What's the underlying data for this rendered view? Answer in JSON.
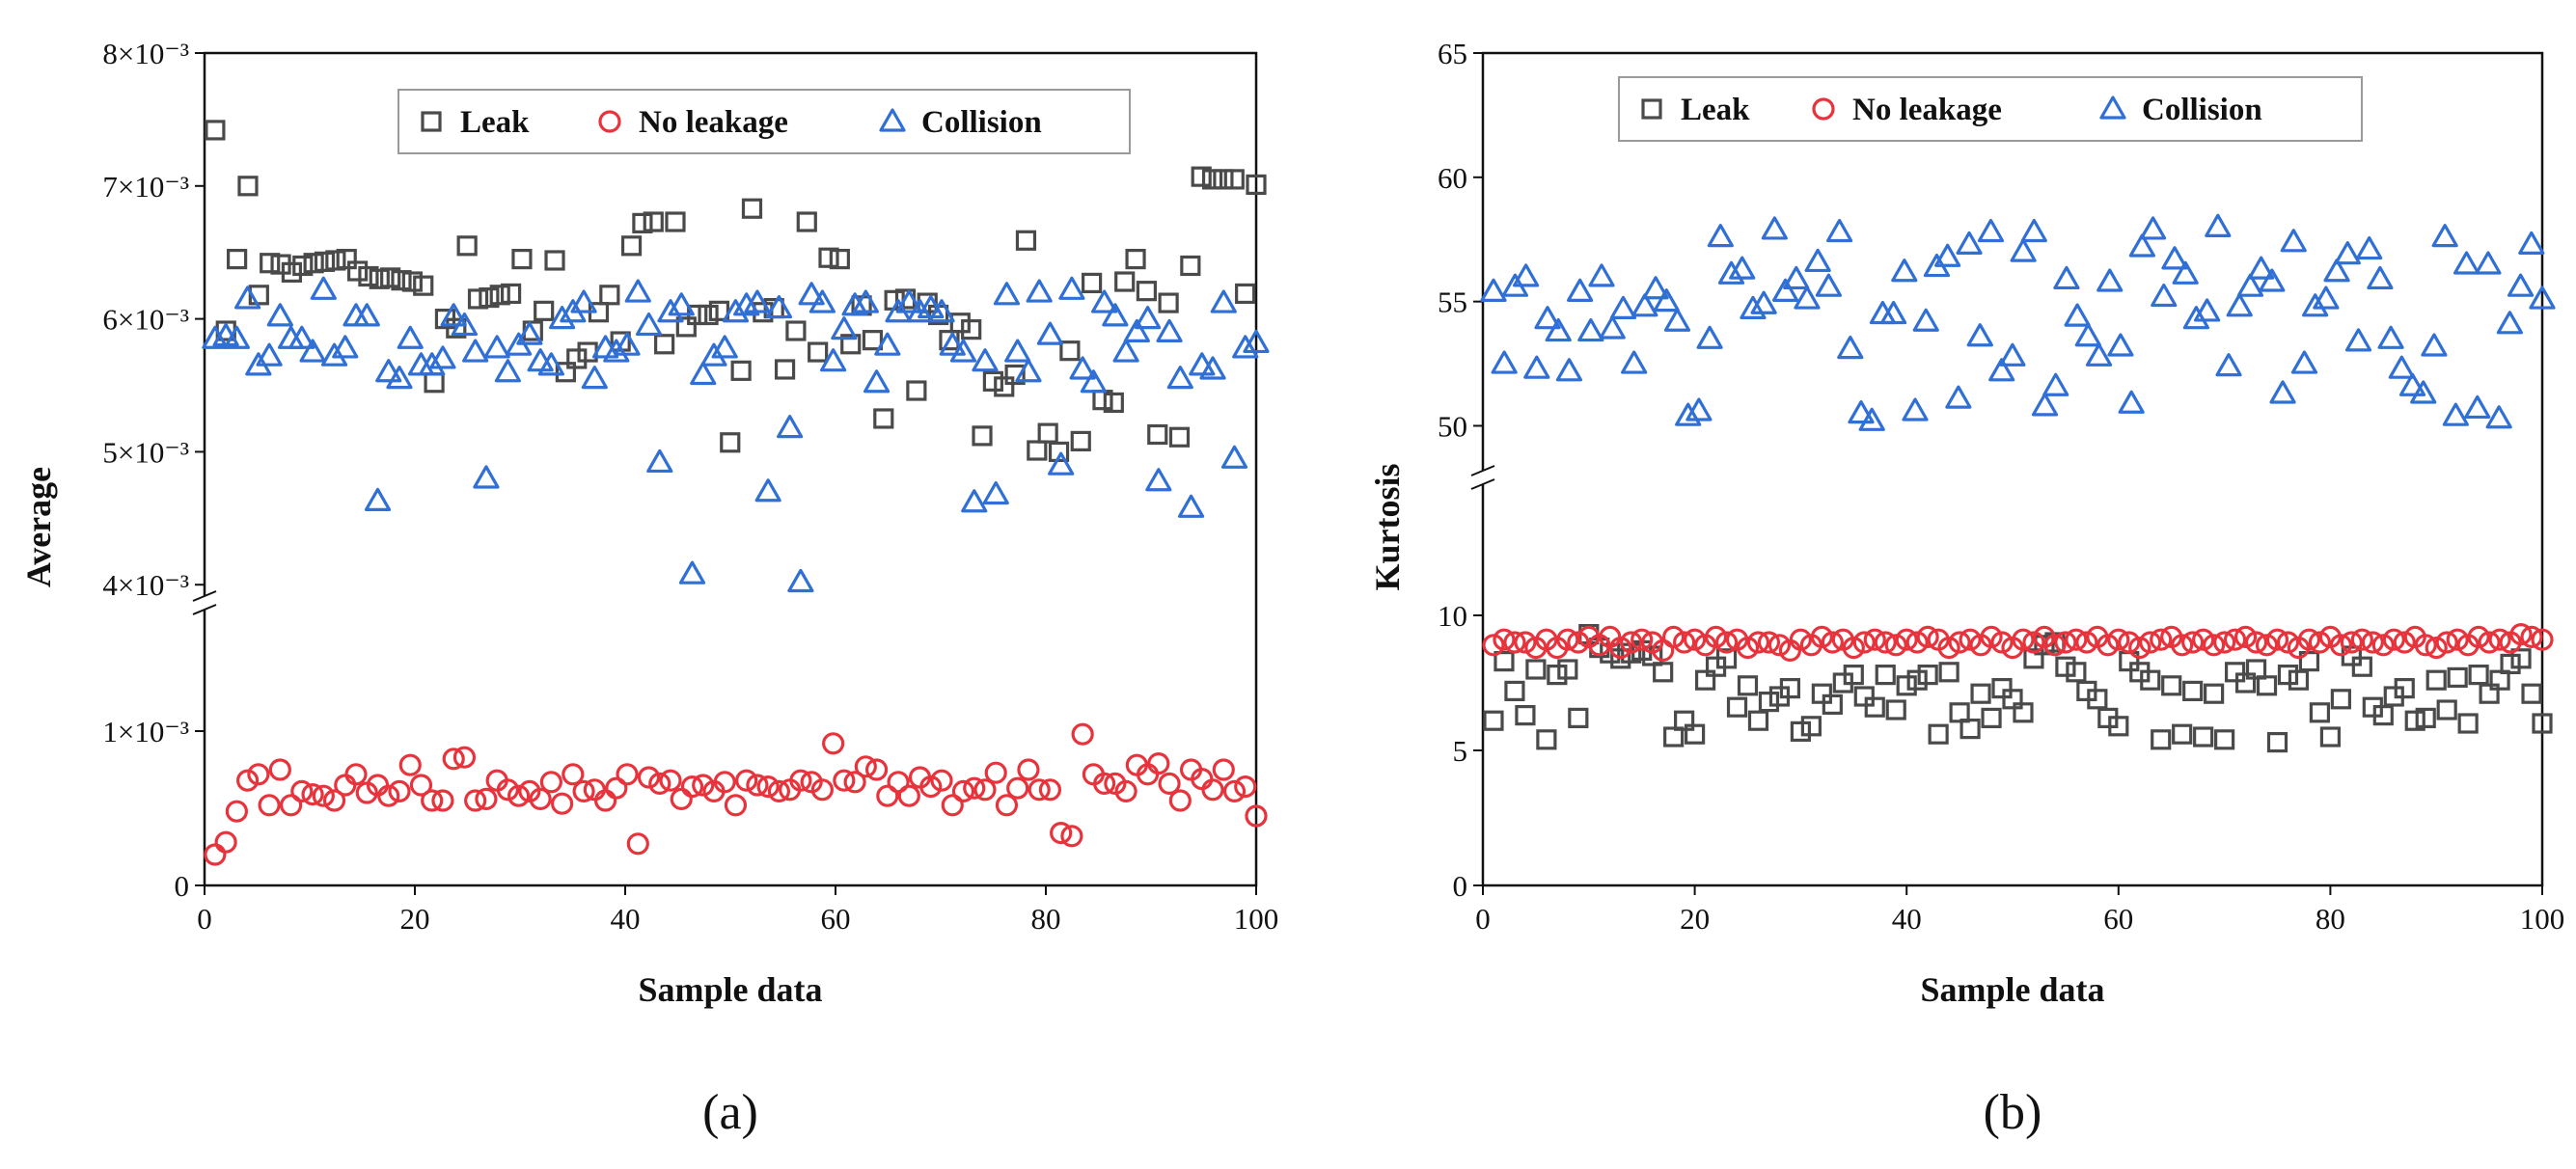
{
  "chart_data": [
    {
      "type": "scatter",
      "panel_label": "(a)",
      "xlabel": "Sample data",
      "ylabel": "Average",
      "xlim": [
        0,
        100
      ],
      "x_ticks": [
        0,
        20,
        40,
        60,
        80,
        100
      ],
      "y_axis_break": {
        "lower_range": [
          0,
          0.0018
        ],
        "upper_range": [
          0.0039,
          0.008
        ]
      },
      "y_ticks": [
        {
          "value": 0,
          "label": "0"
        },
        {
          "value": 0.001,
          "label": "1×10⁻³"
        },
        {
          "value": 0.004,
          "label": "4×10⁻³"
        },
        {
          "value": 0.005,
          "label": "5×10⁻³"
        },
        {
          "value": 0.006,
          "label": "6×10⁻³"
        },
        {
          "value": 0.007,
          "label": "7×10⁻³"
        },
        {
          "value": 0.008,
          "label": "8×10⁻³"
        }
      ],
      "legend_position": "top-center",
      "series": [
        {
          "name": "Leak",
          "marker": "square",
          "color": "#4a4a4a",
          "values": [
            0.00742,
            0.00591,
            0.00645,
            0.007,
            0.00618,
            0.00642,
            0.00641,
            0.00635,
            0.0064,
            0.00642,
            0.00643,
            0.00644,
            0.00645,
            0.00636,
            0.00632,
            0.0063,
            0.00631,
            0.00629,
            0.00628,
            0.00625,
            0.00552,
            0.006,
            0.00593,
            0.00655,
            0.00615,
            0.00616,
            0.00618,
            0.00619,
            0.00645,
            0.00591,
            0.00606,
            0.00644,
            0.0056,
            0.0057,
            0.00575,
            0.00605,
            0.00618,
            0.00583,
            0.00655,
            0.00672,
            0.00673,
            0.00581,
            0.00673,
            0.00594,
            0.00603,
            0.00603,
            0.00606,
            0.00507,
            0.00561,
            0.00683,
            0.00605,
            0.00608,
            0.00562,
            0.00591,
            0.00673,
            0.00575,
            0.00646,
            0.00645,
            0.00581,
            0.0061,
            0.00584,
            0.00525,
            0.00614,
            0.00615,
            0.00546,
            0.00612,
            0.00603,
            0.00584,
            0.00597,
            0.00592,
            0.00512,
            0.00553,
            0.00549,
            0.00558,
            0.00659,
            0.00501,
            0.00514,
            0.005,
            0.00576,
            0.00508,
            0.00627,
            0.00539,
            0.00537,
            0.00628,
            0.00645,
            0.00621,
            0.00513,
            0.00612,
            0.00511,
            0.0064,
            0.00707,
            0.00705,
            0.00705,
            0.00705,
            0.00619,
            0.00701
          ]
        },
        {
          "name": "No leakage",
          "marker": "circle",
          "color": "#e8333c",
          "values": [
            0.0002,
            0.00028,
            0.00048,
            0.00068,
            0.00072,
            0.00052,
            0.00075,
            0.00052,
            0.00061,
            0.00059,
            0.00058,
            0.00055,
            0.00065,
            0.00072,
            0.0006,
            0.00065,
            0.00058,
            0.00061,
            0.00078,
            0.00065,
            0.00055,
            0.00055,
            0.00082,
            0.00083,
            0.00055,
            0.00056,
            0.00068,
            0.00062,
            0.00058,
            0.00061,
            0.00056,
            0.00067,
            0.00053,
            0.00072,
            0.00061,
            0.00062,
            0.00055,
            0.00063,
            0.00072,
            0.00027,
            0.0007,
            0.00066,
            0.00068,
            0.00056,
            0.00064,
            0.00065,
            0.00061,
            0.00067,
            0.00052,
            0.00068,
            0.00065,
            0.00064,
            0.00061,
            0.00062,
            0.00068,
            0.00067,
            0.00062,
            0.00092,
            0.00068,
            0.00067,
            0.00077,
            0.00075,
            0.00058,
            0.00067,
            0.00058,
            0.0007,
            0.00064,
            0.00068,
            0.00052,
            0.00061,
            0.00063,
            0.00062,
            0.00073,
            0.00052,
            0.00063,
            0.00075,
            0.00062,
            0.00062,
            0.00034,
            0.00032,
            0.00098,
            0.00072,
            0.00066,
            0.00066,
            0.00061,
            0.00078,
            0.00072,
            0.00079,
            0.00066,
            0.00055,
            0.00075,
            0.00069,
            0.00062,
            0.00075,
            0.00061,
            0.00064,
            0.00045
          ]
        },
        {
          "name": "Collision",
          "marker": "triangle",
          "color": "#2f6fd6",
          "values": [
            0.00585,
            0.00587,
            0.00585,
            0.00615,
            0.00565,
            0.00572,
            0.00602,
            0.00585,
            0.00585,
            0.00575,
            0.00622,
            0.00572,
            0.00578,
            0.00602,
            0.00602,
            0.00463,
            0.0056,
            0.00555,
            0.00585,
            0.00565,
            0.00565,
            0.0057,
            0.00602,
            0.00595,
            0.00575,
            0.0048,
            0.00578,
            0.0056,
            0.0058,
            0.00588,
            0.00568,
            0.00565,
            0.006,
            0.00605,
            0.00612,
            0.00555,
            0.00578,
            0.00575,
            0.0058,
            0.0062,
            0.00595,
            0.00492,
            0.00605,
            0.0061,
            0.00408,
            0.00558,
            0.00572,
            0.00578,
            0.00605,
            0.0061,
            0.00612,
            0.0047,
            0.00608,
            0.00518,
            0.00402,
            0.00618,
            0.00612,
            0.00568,
            0.00592,
            0.0061,
            0.00612,
            0.00552,
            0.0058,
            0.00605,
            0.00612,
            0.00605,
            0.00608,
            0.00605,
            0.0058,
            0.00575,
            0.00462,
            0.00568,
            0.00468,
            0.00618,
            0.00575,
            0.0056,
            0.0062,
            0.00588,
            0.0049,
            0.00622,
            0.00562,
            0.00552,
            0.00612,
            0.00602,
            0.00575,
            0.0059,
            0.006,
            0.00478,
            0.0059,
            0.00555,
            0.00458,
            0.00565,
            0.00562,
            0.00612,
            0.00495,
            0.00578,
            0.00582
          ]
        }
      ]
    },
    {
      "type": "scatter",
      "panel_label": "(b)",
      "xlabel": "Sample data",
      "ylabel": "Kurtosis",
      "xlim": [
        0,
        100
      ],
      "x_ticks": [
        0,
        20,
        40,
        60,
        80,
        100
      ],
      "y_axis_break": {
        "lower_range": [
          0,
          15
        ],
        "upper_range": [
          48,
          65
        ]
      },
      "y_ticks": [
        {
          "value": 0,
          "label": "0"
        },
        {
          "value": 5,
          "label": "5"
        },
        {
          "value": 10,
          "label": "10"
        },
        {
          "value": 50,
          "label": "50"
        },
        {
          "value": 55,
          "label": "55"
        },
        {
          "value": 60,
          "label": "60"
        },
        {
          "value": 65,
          "label": "65"
        }
      ],
      "legend_position": "top-center",
      "series": [
        {
          "name": "Leak",
          "marker": "square",
          "color": "#4a4a4a",
          "values": [
            6.1,
            8.3,
            7.2,
            6.3,
            8.0,
            5.4,
            7.8,
            8.0,
            6.2,
            9.3,
            8.8,
            8.6,
            8.4,
            8.6,
            8.7,
            8.5,
            7.9,
            5.5,
            6.1,
            5.6,
            7.6,
            8.1,
            8.4,
            6.6,
            7.4,
            6.1,
            6.8,
            7.0,
            7.3,
            5.7,
            5.9,
            7.1,
            6.7,
            7.5,
            7.8,
            7.0,
            6.6,
            7.8,
            6.5,
            7.4,
            7.6,
            7.8,
            5.6,
            7.9,
            6.4,
            5.8,
            7.1,
            6.2,
            7.3,
            6.9,
            6.4,
            8.4,
            8.9,
            9.0,
            8.1,
            7.9,
            7.2,
            6.9,
            6.2,
            5.9,
            8.3,
            7.9,
            7.6,
            5.4,
            7.4,
            5.6,
            7.2,
            5.5,
            7.1,
            5.4,
            7.9,
            7.5,
            8.0,
            7.4,
            5.3,
            7.8,
            7.6,
            8.3,
            6.4,
            5.5,
            6.9,
            8.5,
            8.1,
            6.6,
            6.3,
            7.0,
            7.3,
            6.1,
            6.2,
            7.6,
            6.5,
            7.7,
            6.0,
            7.8,
            7.1,
            7.6,
            8.2,
            8.4,
            7.1,
            6.0
          ]
        },
        {
          "name": "No leakage",
          "marker": "circle",
          "color": "#e8333c",
          "values": [
            8.9,
            9.1,
            9.0,
            9.0,
            8.8,
            9.1,
            8.8,
            9.1,
            9.0,
            9.2,
            8.9,
            9.2,
            8.8,
            9.0,
            9.1,
            9.0,
            8.7,
            9.2,
            9.0,
            9.1,
            8.9,
            9.2,
            9.0,
            9.1,
            8.8,
            9.0,
            9.0,
            8.9,
            8.7,
            9.1,
            8.9,
            9.2,
            9.0,
            9.1,
            8.8,
            9.0,
            9.1,
            9.0,
            8.9,
            9.1,
            9.0,
            9.2,
            9.1,
            8.8,
            9.0,
            9.1,
            8.9,
            9.2,
            9.0,
            8.8,
            9.1,
            9.0,
            9.2,
            8.9,
            9.0,
            9.1,
            9.0,
            9.2,
            8.9,
            9.1,
            9.0,
            8.8,
            9.0,
            9.1,
            9.2,
            8.9,
            9.0,
            9.1,
            8.9,
            9.0,
            9.1,
            9.2,
            9.0,
            8.9,
            9.1,
            9.0,
            8.8,
            9.1,
            9.0,
            9.2,
            8.9,
            9.0,
            9.1,
            9.0,
            8.9,
            9.1,
            9.0,
            9.2,
            8.9,
            8.8,
            9.0,
            9.1,
            8.9,
            9.2,
            9.0,
            9.1,
            9.0,
            9.3,
            9.2,
            9.1
          ]
        },
        {
          "name": "Collision",
          "marker": "triangle",
          "color": "#2f6fd6",
          "values": [
            55.4,
            52.5,
            55.6,
            56.0,
            52.3,
            54.3,
            53.8,
            52.2,
            55.4,
            53.8,
            56.0,
            53.9,
            54.7,
            52.5,
            54.8,
            55.5,
            55.0,
            54.2,
            50.4,
            50.6,
            53.5,
            57.6,
            56.1,
            56.3,
            54.7,
            54.9,
            57.9,
            55.4,
            55.9,
            55.1,
            56.6,
            55.6,
            57.8,
            53.1,
            50.5,
            50.2,
            54.5,
            54.5,
            56.2,
            50.6,
            54.2,
            56.4,
            56.8,
            51.1,
            57.3,
            53.6,
            57.8,
            52.2,
            52.8,
            57.0,
            57.8,
            50.8,
            51.6,
            55.9,
            54.4,
            53.6,
            52.8,
            55.8,
            53.2,
            50.9,
            57.2,
            57.9,
            55.2,
            56.7,
            56.1,
            54.3,
            54.6,
            58.0,
            52.4,
            54.8,
            55.6,
            56.3,
            55.8,
            51.3,
            57.4,
            52.5,
            54.8,
            55.1,
            56.2,
            56.9,
            53.4,
            57.1,
            55.9,
            53.5,
            52.3,
            51.6,
            51.3,
            53.2,
            57.6,
            50.4,
            56.5,
            50.7,
            56.5,
            50.3,
            54.1,
            55.6,
            57.3,
            55.1
          ]
        }
      ]
    }
  ]
}
